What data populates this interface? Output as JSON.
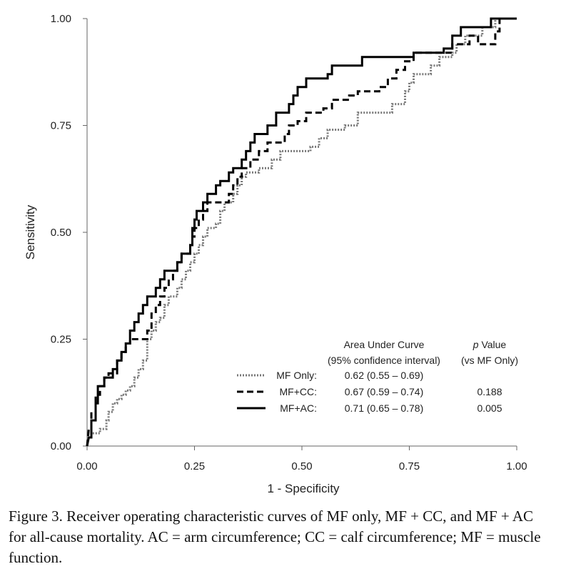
{
  "chart_data": {
    "type": "line",
    "xlabel": "1 - Specificity",
    "ylabel": "Sensitivity",
    "xlim": [
      0,
      1
    ],
    "ylim": [
      0,
      1
    ],
    "x_ticks": [
      "0.00",
      "0.25",
      "0.50",
      "0.75",
      "1.00"
    ],
    "y_ticks": [
      "0.00",
      "0.25",
      "0.50",
      "0.75",
      "1.00"
    ],
    "grid": false,
    "legend": {
      "placement": "bottom-right",
      "header_auc_line1": "Area Under Curve",
      "header_auc_line2": "(95% confidence interval)",
      "header_p_line1": "p",
      "header_p_line1_suffix": " Value",
      "header_p_line2": "(vs MF Only)"
    },
    "series": [
      {
        "name": "MF Only:",
        "auc": "0.62 (0.55 – 0.69)",
        "p_value": "",
        "style": "dotted",
        "color": "#777777",
        "points": [
          [
            0,
            0
          ],
          [
            0.003,
            0.02
          ],
          [
            0.01,
            0.02
          ],
          [
            0.01,
            0.03
          ],
          [
            0.03,
            0.03
          ],
          [
            0.03,
            0.04
          ],
          [
            0.045,
            0.04
          ],
          [
            0.045,
            0.06
          ],
          [
            0.05,
            0.06
          ],
          [
            0.05,
            0.08
          ],
          [
            0.06,
            0.08
          ],
          [
            0.06,
            0.1
          ],
          [
            0.07,
            0.1
          ],
          [
            0.07,
            0.11
          ],
          [
            0.08,
            0.11
          ],
          [
            0.08,
            0.12
          ],
          [
            0.09,
            0.12
          ],
          [
            0.09,
            0.13
          ],
          [
            0.1,
            0.13
          ],
          [
            0.1,
            0.14
          ],
          [
            0.11,
            0.14
          ],
          [
            0.11,
            0.16
          ],
          [
            0.12,
            0.16
          ],
          [
            0.12,
            0.18
          ],
          [
            0.13,
            0.18
          ],
          [
            0.13,
            0.2
          ],
          [
            0.14,
            0.2
          ],
          [
            0.14,
            0.25
          ],
          [
            0.15,
            0.25
          ],
          [
            0.15,
            0.27
          ],
          [
            0.16,
            0.27
          ],
          [
            0.16,
            0.29
          ],
          [
            0.17,
            0.29
          ],
          [
            0.17,
            0.3
          ],
          [
            0.18,
            0.3
          ],
          [
            0.18,
            0.33
          ],
          [
            0.19,
            0.33
          ],
          [
            0.19,
            0.35
          ],
          [
            0.21,
            0.35
          ],
          [
            0.21,
            0.37
          ],
          [
            0.22,
            0.37
          ],
          [
            0.22,
            0.39
          ],
          [
            0.23,
            0.39
          ],
          [
            0.23,
            0.41
          ],
          [
            0.24,
            0.41
          ],
          [
            0.24,
            0.43
          ],
          [
            0.25,
            0.43
          ],
          [
            0.25,
            0.45
          ],
          [
            0.26,
            0.45
          ],
          [
            0.26,
            0.47
          ],
          [
            0.27,
            0.47
          ],
          [
            0.27,
            0.49
          ],
          [
            0.28,
            0.49
          ],
          [
            0.28,
            0.51
          ],
          [
            0.3,
            0.51
          ],
          [
            0.3,
            0.52
          ],
          [
            0.31,
            0.52
          ],
          [
            0.31,
            0.55
          ],
          [
            0.32,
            0.55
          ],
          [
            0.32,
            0.57
          ],
          [
            0.34,
            0.57
          ],
          [
            0.34,
            0.59
          ],
          [
            0.35,
            0.59
          ],
          [
            0.35,
            0.61
          ],
          [
            0.36,
            0.61
          ],
          [
            0.36,
            0.63
          ],
          [
            0.37,
            0.63
          ],
          [
            0.37,
            0.64
          ],
          [
            0.4,
            0.64
          ],
          [
            0.4,
            0.65
          ],
          [
            0.43,
            0.65
          ],
          [
            0.43,
            0.67
          ],
          [
            0.45,
            0.67
          ],
          [
            0.45,
            0.69
          ],
          [
            0.52,
            0.69
          ],
          [
            0.52,
            0.7
          ],
          [
            0.54,
            0.7
          ],
          [
            0.54,
            0.72
          ],
          [
            0.56,
            0.72
          ],
          [
            0.56,
            0.74
          ],
          [
            0.6,
            0.74
          ],
          [
            0.6,
            0.75
          ],
          [
            0.63,
            0.75
          ],
          [
            0.63,
            0.78
          ],
          [
            0.71,
            0.78
          ],
          [
            0.71,
            0.8
          ],
          [
            0.74,
            0.8
          ],
          [
            0.74,
            0.83
          ],
          [
            0.75,
            0.83
          ],
          [
            0.75,
            0.85
          ],
          [
            0.76,
            0.85
          ],
          [
            0.76,
            0.87
          ],
          [
            0.8,
            0.87
          ],
          [
            0.8,
            0.89
          ],
          [
            0.82,
            0.89
          ],
          [
            0.82,
            0.91
          ],
          [
            0.85,
            0.91
          ],
          [
            0.85,
            0.92
          ],
          [
            0.86,
            0.92
          ],
          [
            0.86,
            0.94
          ],
          [
            0.88,
            0.94
          ],
          [
            0.88,
            0.96
          ],
          [
            0.92,
            0.96
          ],
          [
            0.92,
            0.98
          ],
          [
            0.95,
            0.98
          ],
          [
            0.95,
            1.0
          ],
          [
            1.0,
            1.0
          ]
        ]
      },
      {
        "name": "MF+CC:",
        "auc": "0.67 (0.59 – 0.74)",
        "p_value": "0.188",
        "style": "dashed",
        "color": "#000000",
        "points": [
          [
            0,
            0
          ],
          [
            0.004,
            0.04
          ],
          [
            0.01,
            0.04
          ],
          [
            0.01,
            0.08
          ],
          [
            0.02,
            0.08
          ],
          [
            0.02,
            0.12
          ],
          [
            0.03,
            0.12
          ],
          [
            0.03,
            0.14
          ],
          [
            0.04,
            0.14
          ],
          [
            0.04,
            0.16
          ],
          [
            0.05,
            0.16
          ],
          [
            0.05,
            0.17
          ],
          [
            0.07,
            0.17
          ],
          [
            0.07,
            0.2
          ],
          [
            0.08,
            0.2
          ],
          [
            0.08,
            0.22
          ],
          [
            0.09,
            0.22
          ],
          [
            0.09,
            0.24
          ],
          [
            0.1,
            0.24
          ],
          [
            0.1,
            0.25
          ],
          [
            0.14,
            0.25
          ],
          [
            0.14,
            0.27
          ],
          [
            0.15,
            0.27
          ],
          [
            0.15,
            0.31
          ],
          [
            0.16,
            0.31
          ],
          [
            0.16,
            0.33
          ],
          [
            0.17,
            0.33
          ],
          [
            0.17,
            0.35
          ],
          [
            0.18,
            0.35
          ],
          [
            0.18,
            0.37
          ],
          [
            0.19,
            0.37
          ],
          [
            0.19,
            0.39
          ],
          [
            0.2,
            0.39
          ],
          [
            0.2,
            0.41
          ],
          [
            0.21,
            0.41
          ],
          [
            0.21,
            0.43
          ],
          [
            0.22,
            0.43
          ],
          [
            0.22,
            0.45
          ],
          [
            0.24,
            0.45
          ],
          [
            0.24,
            0.47
          ],
          [
            0.245,
            0.47
          ],
          [
            0.245,
            0.49
          ],
          [
            0.25,
            0.49
          ],
          [
            0.25,
            0.51
          ],
          [
            0.26,
            0.51
          ],
          [
            0.26,
            0.53
          ],
          [
            0.27,
            0.53
          ],
          [
            0.27,
            0.55
          ],
          [
            0.28,
            0.55
          ],
          [
            0.28,
            0.57
          ],
          [
            0.33,
            0.57
          ],
          [
            0.33,
            0.59
          ],
          [
            0.34,
            0.59
          ],
          [
            0.34,
            0.61
          ],
          [
            0.35,
            0.61
          ],
          [
            0.35,
            0.63
          ],
          [
            0.36,
            0.63
          ],
          [
            0.36,
            0.65
          ],
          [
            0.38,
            0.65
          ],
          [
            0.38,
            0.67
          ],
          [
            0.4,
            0.67
          ],
          [
            0.4,
            0.69
          ],
          [
            0.42,
            0.69
          ],
          [
            0.42,
            0.71
          ],
          [
            0.46,
            0.71
          ],
          [
            0.46,
            0.73
          ],
          [
            0.47,
            0.73
          ],
          [
            0.47,
            0.75
          ],
          [
            0.49,
            0.75
          ],
          [
            0.49,
            0.76
          ],
          [
            0.51,
            0.76
          ],
          [
            0.51,
            0.78
          ],
          [
            0.55,
            0.78
          ],
          [
            0.55,
            0.79
          ],
          [
            0.57,
            0.79
          ],
          [
            0.57,
            0.81
          ],
          [
            0.61,
            0.81
          ],
          [
            0.61,
            0.82
          ],
          [
            0.63,
            0.82
          ],
          [
            0.63,
            0.83
          ],
          [
            0.68,
            0.83
          ],
          [
            0.68,
            0.84
          ],
          [
            0.7,
            0.84
          ],
          [
            0.7,
            0.86
          ],
          [
            0.72,
            0.86
          ],
          [
            0.72,
            0.88
          ],
          [
            0.74,
            0.88
          ],
          [
            0.74,
            0.9
          ],
          [
            0.76,
            0.9
          ],
          [
            0.76,
            0.92
          ],
          [
            0.85,
            0.92
          ],
          [
            0.85,
            0.94
          ],
          [
            0.89,
            0.94
          ],
          [
            0.89,
            0.96
          ],
          [
            0.91,
            0.96
          ],
          [
            0.91,
            0.94
          ],
          [
            0.95,
            0.94
          ],
          [
            0.95,
            0.97
          ],
          [
            0.96,
            0.97
          ],
          [
            0.96,
            1.0
          ],
          [
            1.0,
            1.0
          ]
        ]
      },
      {
        "name": "MF+AC:",
        "auc": "0.71 (0.65 – 0.78)",
        "p_value": "0.005",
        "style": "solid",
        "color": "#000000",
        "points": [
          [
            0,
            0
          ],
          [
            0.004,
            0.02
          ],
          [
            0.01,
            0.02
          ],
          [
            0.01,
            0.06
          ],
          [
            0.02,
            0.06
          ],
          [
            0.02,
            0.1
          ],
          [
            0.025,
            0.1
          ],
          [
            0.025,
            0.14
          ],
          [
            0.04,
            0.14
          ],
          [
            0.04,
            0.16
          ],
          [
            0.06,
            0.16
          ],
          [
            0.06,
            0.18
          ],
          [
            0.07,
            0.18
          ],
          [
            0.07,
            0.2
          ],
          [
            0.08,
            0.2
          ],
          [
            0.08,
            0.22
          ],
          [
            0.09,
            0.22
          ],
          [
            0.09,
            0.24
          ],
          [
            0.1,
            0.24
          ],
          [
            0.1,
            0.27
          ],
          [
            0.11,
            0.27
          ],
          [
            0.11,
            0.29
          ],
          [
            0.12,
            0.29
          ],
          [
            0.12,
            0.31
          ],
          [
            0.13,
            0.31
          ],
          [
            0.13,
            0.33
          ],
          [
            0.14,
            0.33
          ],
          [
            0.14,
            0.35
          ],
          [
            0.16,
            0.35
          ],
          [
            0.16,
            0.37
          ],
          [
            0.17,
            0.37
          ],
          [
            0.17,
            0.39
          ],
          [
            0.18,
            0.39
          ],
          [
            0.18,
            0.41
          ],
          [
            0.21,
            0.41
          ],
          [
            0.21,
            0.43
          ],
          [
            0.22,
            0.43
          ],
          [
            0.22,
            0.45
          ],
          [
            0.24,
            0.45
          ],
          [
            0.24,
            0.47
          ],
          [
            0.245,
            0.47
          ],
          [
            0.245,
            0.51
          ],
          [
            0.25,
            0.51
          ],
          [
            0.25,
            0.53
          ],
          [
            0.255,
            0.53
          ],
          [
            0.255,
            0.55
          ],
          [
            0.27,
            0.55
          ],
          [
            0.27,
            0.57
          ],
          [
            0.28,
            0.57
          ],
          [
            0.28,
            0.59
          ],
          [
            0.3,
            0.59
          ],
          [
            0.3,
            0.61
          ],
          [
            0.31,
            0.61
          ],
          [
            0.31,
            0.62
          ],
          [
            0.33,
            0.62
          ],
          [
            0.33,
            0.64
          ],
          [
            0.34,
            0.64
          ],
          [
            0.34,
            0.65
          ],
          [
            0.36,
            0.65
          ],
          [
            0.36,
            0.67
          ],
          [
            0.37,
            0.67
          ],
          [
            0.37,
            0.69
          ],
          [
            0.38,
            0.69
          ],
          [
            0.38,
            0.71
          ],
          [
            0.39,
            0.71
          ],
          [
            0.39,
            0.73
          ],
          [
            0.42,
            0.73
          ],
          [
            0.42,
            0.75
          ],
          [
            0.44,
            0.75
          ],
          [
            0.44,
            0.78
          ],
          [
            0.47,
            0.78
          ],
          [
            0.47,
            0.8
          ],
          [
            0.48,
            0.8
          ],
          [
            0.48,
            0.82
          ],
          [
            0.49,
            0.82
          ],
          [
            0.49,
            0.84
          ],
          [
            0.51,
            0.84
          ],
          [
            0.51,
            0.86
          ],
          [
            0.56,
            0.86
          ],
          [
            0.56,
            0.87
          ],
          [
            0.57,
            0.87
          ],
          [
            0.57,
            0.89
          ],
          [
            0.64,
            0.89
          ],
          [
            0.64,
            0.91
          ],
          [
            0.76,
            0.91
          ],
          [
            0.76,
            0.92
          ],
          [
            0.83,
            0.92
          ],
          [
            0.83,
            0.93
          ],
          [
            0.85,
            0.93
          ],
          [
            0.85,
            0.96
          ],
          [
            0.87,
            0.96
          ],
          [
            0.87,
            0.98
          ],
          [
            0.94,
            0.98
          ],
          [
            0.94,
            1.0
          ],
          [
            1.0,
            1.0
          ]
        ]
      }
    ]
  },
  "caption": "Figure 3. Receiver operating characteristic curves of MF only, MF + CC, and MF + AC for all-cause mortality. AC = arm circumference; CC = calf circumference; MF = muscle function."
}
